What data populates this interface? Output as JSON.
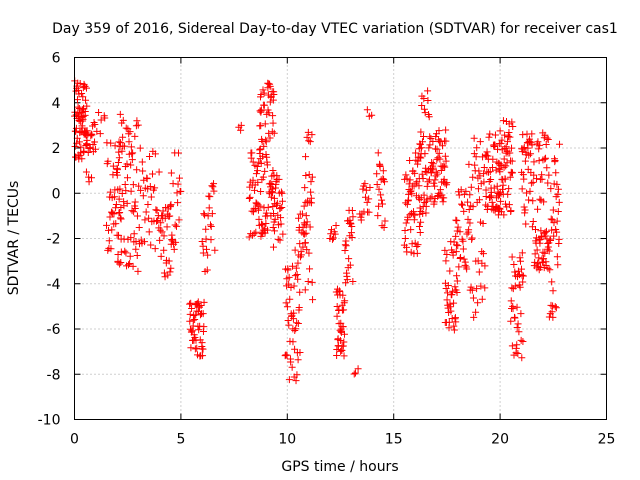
{
  "chart_data": {
    "type": "scatter",
    "title": "Day 359 of 2016, Sidereal Day-to-day VTEC variation (SDTVAR) for receiver cas1",
    "xlabel": "GPS time / hours",
    "ylabel": "SDTVAR / TECUs",
    "xlim": [
      0,
      25
    ],
    "ylim": [
      -10,
      6
    ],
    "xticks": [
      0,
      5,
      10,
      15,
      20,
      25
    ],
    "yticks": [
      -10,
      -8,
      -6,
      -4,
      -2,
      0,
      2,
      4,
      6
    ],
    "xtick_labels": [
      "0",
      "5",
      "10",
      "15",
      "20",
      "25"
    ],
    "ytick_labels": [
      "-10",
      "-8",
      "-6",
      "-4",
      "-2",
      "0",
      "2",
      "4",
      "6"
    ],
    "grid": true,
    "marker": "+",
    "marker_color": "#ff0000",
    "series": [
      {
        "name": "SDTVAR",
        "segments": [
          {
            "t0": 0.0,
            "t1": 0.6,
            "lo": 1.5,
            "hi": 5.0,
            "n": 70
          },
          {
            "t0": 0.5,
            "t1": 1.0,
            "lo": 0.5,
            "hi": 3.5,
            "n": 22
          },
          {
            "t0": 1.0,
            "t1": 1.5,
            "lo": 2.6,
            "hi": 3.6,
            "n": 6
          },
          {
            "t0": 1.5,
            "t1": 2.2,
            "lo": -2.8,
            "hi": 2.5,
            "n": 40
          },
          {
            "t0": 2.0,
            "t1": 3.0,
            "lo": -3.5,
            "hi": 3.8,
            "n": 70
          },
          {
            "t0": 3.0,
            "t1": 4.0,
            "lo": -2.5,
            "hi": 2.2,
            "n": 40
          },
          {
            "t0": 4.0,
            "t1": 4.6,
            "lo": -3.8,
            "hi": -0.5,
            "n": 30
          },
          {
            "t0": 4.5,
            "t1": 5.0,
            "lo": -3.0,
            "hi": 1.8,
            "n": 20
          },
          {
            "t0": 5.4,
            "t1": 6.1,
            "lo": -7.2,
            "hi": -4.8,
            "n": 50
          },
          {
            "t0": 6.0,
            "t1": 6.3,
            "lo": -3.5,
            "hi": -0.8,
            "n": 12
          },
          {
            "t0": 6.3,
            "t1": 6.6,
            "lo": -2.6,
            "hi": 0.5,
            "n": 12
          },
          {
            "t0": 7.7,
            "t1": 7.9,
            "lo": 2.7,
            "hi": 3.0,
            "n": 3
          },
          {
            "t0": 8.2,
            "t1": 8.8,
            "lo": -2.0,
            "hi": 2.0,
            "n": 40
          },
          {
            "t0": 8.7,
            "t1": 9.4,
            "lo": -1.8,
            "hi": 4.9,
            "n": 80
          },
          {
            "t0": 9.3,
            "t1": 9.8,
            "lo": -2.5,
            "hi": 1.5,
            "n": 30
          },
          {
            "t0": 9.9,
            "t1": 10.6,
            "lo": -8.3,
            "hi": -2.5,
            "n": 50
          },
          {
            "t0": 10.5,
            "t1": 10.9,
            "lo": -3.2,
            "hi": 0.0,
            "n": 20
          },
          {
            "t0": 10.8,
            "t1": 11.2,
            "lo": -4.8,
            "hi": 2.7,
            "n": 30
          },
          {
            "t0": 12.0,
            "t1": 12.3,
            "lo": -2.1,
            "hi": -1.4,
            "n": 8
          },
          {
            "t0": 12.3,
            "t1": 12.7,
            "lo": -7.2,
            "hi": -4.2,
            "n": 40
          },
          {
            "t0": 12.7,
            "t1": 13.1,
            "lo": -4.0,
            "hi": -0.6,
            "n": 25
          },
          {
            "t0": 13.1,
            "t1": 13.4,
            "lo": -8.0,
            "hi": -7.5,
            "n": 3
          },
          {
            "t0": 13.4,
            "t1": 13.9,
            "lo": -1.5,
            "hi": 0.5,
            "n": 15
          },
          {
            "t0": 13.7,
            "t1": 14.0,
            "lo": 3.2,
            "hi": 3.9,
            "n": 3
          },
          {
            "t0": 14.2,
            "t1": 14.6,
            "lo": -1.6,
            "hi": 1.8,
            "n": 20
          },
          {
            "t0": 15.5,
            "t1": 16.3,
            "lo": -2.7,
            "hi": 1.8,
            "n": 60
          },
          {
            "t0": 16.2,
            "t1": 16.7,
            "lo": -1.0,
            "hi": 4.6,
            "n": 40
          },
          {
            "t0": 16.7,
            "t1": 17.5,
            "lo": -0.5,
            "hi": 2.8,
            "n": 60
          },
          {
            "t0": 17.4,
            "t1": 18.0,
            "lo": -6.2,
            "hi": -2.0,
            "n": 40
          },
          {
            "t0": 17.9,
            "t1": 18.5,
            "lo": -3.5,
            "hi": 0.2,
            "n": 30
          },
          {
            "t0": 18.5,
            "t1": 19.3,
            "lo": -5.5,
            "hi": 2.6,
            "n": 50
          },
          {
            "t0": 19.3,
            "t1": 20.0,
            "lo": -0.8,
            "hi": 2.8,
            "n": 50
          },
          {
            "t0": 19.9,
            "t1": 20.6,
            "lo": -1.0,
            "hi": 3.4,
            "n": 60
          },
          {
            "t0": 20.5,
            "t1": 21.1,
            "lo": -7.3,
            "hi": -2.6,
            "n": 40
          },
          {
            "t0": 21.0,
            "t1": 21.6,
            "lo": -1.5,
            "hi": 2.7,
            "n": 40
          },
          {
            "t0": 21.6,
            "t1": 22.3,
            "lo": -3.4,
            "hi": -1.6,
            "n": 40
          },
          {
            "t0": 21.7,
            "t1": 22.3,
            "lo": -0.8,
            "hi": 2.7,
            "n": 25
          },
          {
            "t0": 22.3,
            "t1": 22.8,
            "lo": -5.5,
            "hi": 2.4,
            "n": 40
          }
        ]
      }
    ]
  }
}
